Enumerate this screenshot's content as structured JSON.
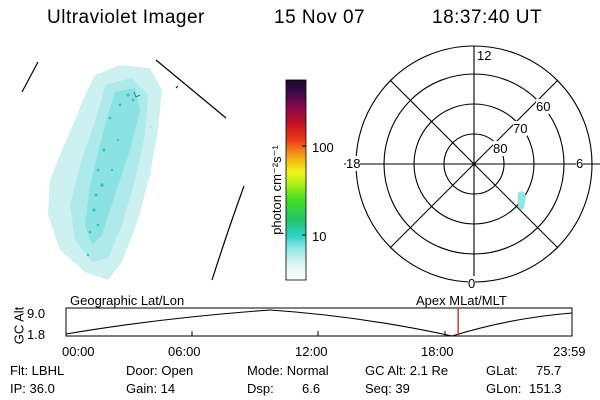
{
  "header": {
    "instrument": "Ultraviolet Imager",
    "date": "15 Nov 07",
    "time": "18:37:40 UT"
  },
  "colorbar": {
    "unit_label": "photon cm⁻²s⁻¹",
    "ticks": [
      "100",
      "10"
    ]
  },
  "polar_plot": {
    "mlt_labels": {
      "top": "12",
      "left": "18",
      "right": "6",
      "bottom": "0"
    },
    "lat_labels": [
      "60",
      "70",
      "80"
    ]
  },
  "timeline": {
    "left_title": "Geographic Lat/Lon",
    "right_title": "Apex MLat/MLT",
    "axis_name": "GC Alt",
    "y_ticks": [
      "9.0",
      "1.8"
    ],
    "x_ticks": [
      "00:00",
      "06:00",
      "12:00",
      "18:00",
      "23:59"
    ],
    "current_time_fraction": 0.775
  },
  "status": {
    "filter": "Flt: LBHL",
    "ip": "IP: 36.0",
    "door": "Door: Open",
    "gain": "Gain: 14",
    "mode": "Mode: Normal",
    "dsp_label": "Dsp:",
    "dsp_value": "6.6",
    "gc_alt": "GC Alt: 2.1 Re",
    "seq": "Seq: 39",
    "glat": "GLat:",
    "glat_value": "75.7",
    "glon": "GLon:",
    "glon_value": "151.3"
  },
  "colors": {
    "aurora_light": "#c8f0f0",
    "aurora_mid": "#5fe0e0",
    "aurora_dark": "#2cc8c8",
    "marker": "#c0392b"
  }
}
